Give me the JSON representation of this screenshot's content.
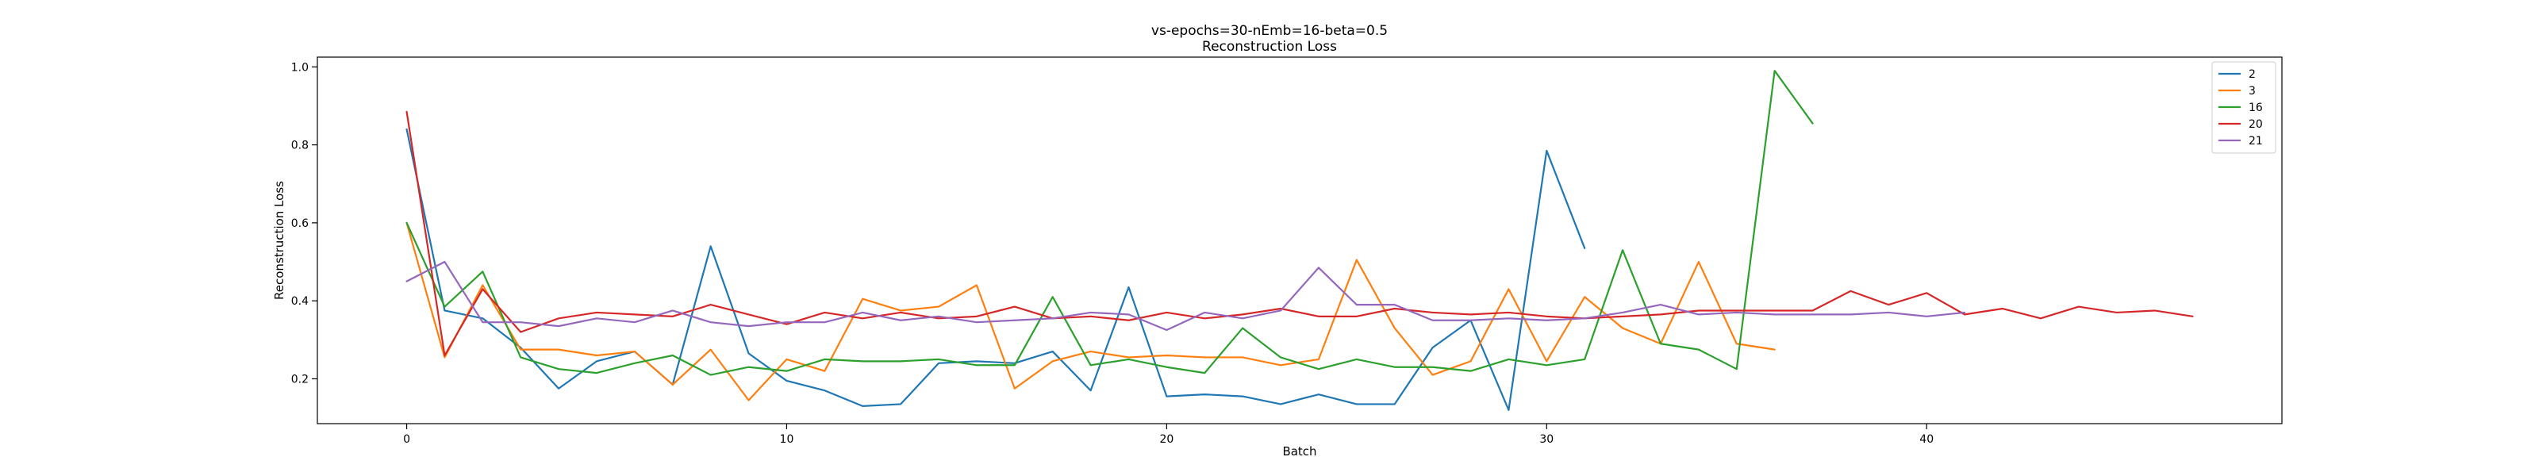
{
  "chart_data": {
    "type": "line",
    "title": "vs-epochs=30-nEmb=16-beta=0.5",
    "subtitle": "Reconstruction Loss",
    "xlabel": "Batch",
    "ylabel": "Reconstruction Loss",
    "xlim": [
      -2.35,
      49.35
    ],
    "ylim": [
      0.085,
      1.025
    ],
    "xticks": [
      0,
      10,
      20,
      30,
      40
    ],
    "yticks": [
      0.2,
      0.4,
      0.6,
      0.8,
      1.0
    ],
    "ytick_labels": [
      "0.2",
      "0.4",
      "0.6",
      "0.8",
      "1.0"
    ],
    "grid": false,
    "legend_position": "top-right",
    "series": [
      {
        "name": "2",
        "color": "#1f77b4",
        "values": [
          0.84,
          0.375,
          0.355,
          0.28,
          0.175,
          0.245,
          0.27,
          0.185,
          0.54,
          0.265,
          0.195,
          0.17,
          0.13,
          0.135,
          0.24,
          0.245,
          0.24,
          0.27,
          0.17,
          0.435,
          0.155,
          0.16,
          0.155,
          0.135,
          0.16,
          0.135,
          0.135,
          0.28,
          0.35,
          0.12,
          0.785,
          0.535
        ]
      },
      {
        "name": "3",
        "color": "#ff7f0e",
        "values": [
          0.6,
          0.255,
          0.44,
          0.275,
          0.275,
          0.26,
          0.27,
          0.185,
          0.275,
          0.145,
          0.25,
          0.22,
          0.405,
          0.375,
          0.385,
          0.44,
          0.175,
          0.245,
          0.27,
          0.255,
          0.26,
          0.255,
          0.255,
          0.235,
          0.25,
          0.505,
          0.33,
          0.21,
          0.245,
          0.43,
          0.245,
          0.41,
          0.33,
          0.29,
          0.5,
          0.29,
          0.275
        ]
      },
      {
        "name": "16",
        "color": "#2ca02c",
        "values": [
          0.6,
          0.385,
          0.475,
          0.255,
          0.225,
          0.215,
          0.24,
          0.26,
          0.21,
          0.23,
          0.22,
          0.25,
          0.245,
          0.245,
          0.25,
          0.235,
          0.235,
          0.41,
          0.235,
          0.25,
          0.23,
          0.215,
          0.33,
          0.255,
          0.225,
          0.25,
          0.23,
          0.23,
          0.22,
          0.25,
          0.235,
          0.25,
          0.53,
          0.29,
          0.275,
          0.225,
          0.99,
          0.855
        ]
      },
      {
        "name": "20",
        "color": "#d62728",
        "values": [
          0.885,
          0.26,
          0.43,
          0.32,
          0.355,
          0.37,
          0.365,
          0.36,
          0.39,
          0.365,
          0.34,
          0.37,
          0.355,
          0.37,
          0.355,
          0.36,
          0.385,
          0.355,
          0.36,
          0.35,
          0.37,
          0.355,
          0.365,
          0.38,
          0.36,
          0.36,
          0.38,
          0.37,
          0.365,
          0.37,
          0.36,
          0.355,
          0.36,
          0.365,
          0.375,
          0.375,
          0.375,
          0.375,
          0.425,
          0.39,
          0.42,
          0.365,
          0.38,
          0.355,
          0.385,
          0.37,
          0.375,
          0.36
        ]
      },
      {
        "name": "21",
        "color": "#9467bd",
        "values": [
          0.45,
          0.5,
          0.345,
          0.345,
          0.335,
          0.355,
          0.345,
          0.375,
          0.345,
          0.335,
          0.345,
          0.345,
          0.37,
          0.35,
          0.36,
          0.345,
          0.35,
          0.355,
          0.37,
          0.365,
          0.325,
          0.37,
          0.355,
          0.375,
          0.485,
          0.39,
          0.39,
          0.35,
          0.35,
          0.355,
          0.35,
          0.355,
          0.37,
          0.39,
          0.365,
          0.37,
          0.365,
          0.365,
          0.365,
          0.37,
          0.36,
          0.37
        ]
      }
    ]
  }
}
